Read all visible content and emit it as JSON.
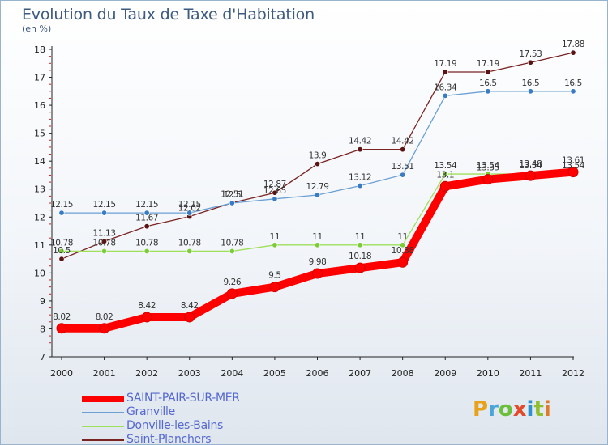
{
  "chart_data": {
    "type": "line",
    "title": "Evolution du Taux de Taxe d'Habitation",
    "subtitle": "(en %)",
    "xlabel": "",
    "ylabel": "",
    "x": [
      "2000",
      "2001",
      "2002",
      "2003",
      "2004",
      "2005",
      "2006",
      "2007",
      "2008",
      "2009",
      "2010",
      "2011",
      "2012"
    ],
    "ylim": [
      7,
      18
    ],
    "yticks": [
      "7",
      "8",
      "9",
      "10",
      "11",
      "12",
      "13",
      "14",
      "15",
      "16",
      "17",
      "18"
    ],
    "grid": false,
    "legend_position": "bottom-left",
    "series": [
      {
        "name": "SAINT-PAIR-SUR-MER",
        "color": "#ff0000",
        "values": [
          8.02,
          8.02,
          8.42,
          8.42,
          9.26,
          9.5,
          9.98,
          10.18,
          10.38,
          13.1,
          13.35,
          13.48,
          13.61
        ],
        "labels": [
          "8.02",
          "8.02",
          "8.42",
          "8.42",
          "9.26",
          "9.5",
          "9.98",
          "10.18",
          "10.38",
          "13.1",
          "13.35",
          "13.48",
          "13.61"
        ]
      },
      {
        "name": "Granville",
        "color": "#6a9fd4",
        "marker": "#3a7cc4",
        "values": [
          12.15,
          12.15,
          12.15,
          12.15,
          12.5,
          12.65,
          12.79,
          13.12,
          13.51,
          16.34,
          16.5,
          16.5,
          16.5
        ],
        "labels": [
          "12.15",
          "12.15",
          "12.15",
          "12.15",
          "12.5",
          "12.65",
          "12.79",
          "13.12",
          "13.51",
          "16.34",
          "16.5",
          "16.5",
          "16.5"
        ]
      },
      {
        "name": "Donville-les-Bains",
        "color": "#9ee05a",
        "marker": "#7ccc3a",
        "values": [
          10.78,
          10.78,
          10.78,
          10.78,
          10.78,
          11,
          11,
          11,
          11,
          13.54,
          13.54,
          13.54,
          13.54
        ],
        "labels": [
          "10.78",
          "10.78",
          "10.78",
          "10.78",
          "10.78",
          "11",
          "11",
          "11",
          "11",
          "13.54",
          "13.54",
          "13.54",
          "13.54"
        ]
      },
      {
        "name": "Saint-Planchers",
        "color": "#7a2323",
        "marker": "#5a1414",
        "values": [
          10.5,
          11.13,
          11.67,
          12.02,
          12.51,
          12.87,
          13.9,
          14.42,
          14.42,
          17.19,
          17.19,
          17.53,
          17.88
        ],
        "labels": [
          "10.5",
          "11.13",
          "11.67",
          "12.02",
          "12.51",
          "12.87",
          "13.9",
          "14.42",
          "14.42",
          "17.19",
          "17.19",
          "17.53",
          "17.88"
        ]
      }
    ]
  },
  "logo": {
    "letters": [
      "P",
      "r",
      "o",
      "x",
      "i",
      "t",
      "i"
    ]
  }
}
